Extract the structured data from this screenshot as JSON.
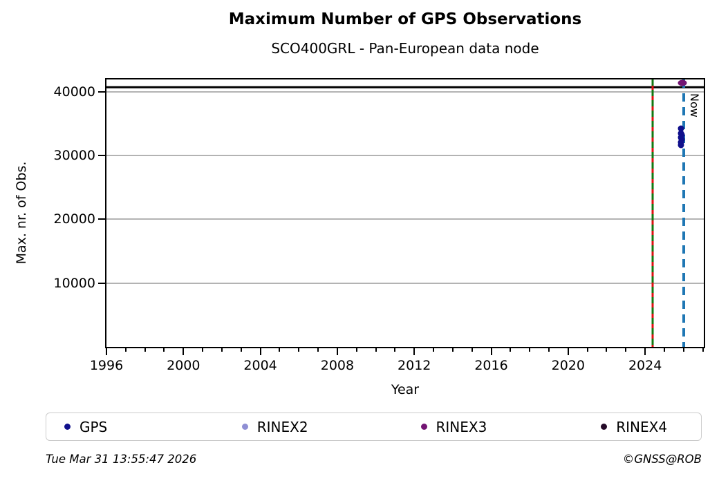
{
  "header": {
    "title": "Maximum Number of GPS Observations",
    "subtitle": "SCO400GRL - Pan-European data node"
  },
  "footer": {
    "timestamp": "Tue Mar 31 13:55:47 2026",
    "credit": "©GNSS@ROB"
  },
  "legend": [
    {
      "label": "GPS",
      "color": "#10108c"
    },
    {
      "label": "RINEX2",
      "color": "#8f8fd4"
    },
    {
      "label": "RINEX3",
      "color": "#731573"
    },
    {
      "label": "RINEX4",
      "color": "#250a28"
    }
  ],
  "chart_data": {
    "type": "scatter",
    "title": "Maximum Number of GPS Observations",
    "subtitle": "SCO400GRL - Pan-European data node",
    "xlabel": "Year",
    "ylabel": "Max. nr. of Obs.",
    "xlim": [
      1996,
      2027.05
    ],
    "ylim": [
      0,
      41900
    ],
    "x_major_ticks": [
      1996,
      2000,
      2004,
      2008,
      2012,
      2016,
      2020,
      2024
    ],
    "x_minor_step": 1,
    "y_ticks": [
      10000,
      20000,
      30000,
      40000
    ],
    "grid": "horizontal-y-major",
    "grid_color": "#b3b3b3",
    "series": [
      {
        "name": "GPS",
        "color": "#10108c",
        "marker": {
          "w": 9,
          "h": 9
        },
        "points": [
          {
            "x": 2025.88,
            "y": 34200
          },
          {
            "x": 2025.86,
            "y": 33500
          },
          {
            "x": 2025.9,
            "y": 33200
          },
          {
            "x": 2025.85,
            "y": 32850
          },
          {
            "x": 2025.89,
            "y": 32500
          },
          {
            "x": 2025.87,
            "y": 32100
          },
          {
            "x": 2025.88,
            "y": 31600
          }
        ]
      },
      {
        "name": "RINEX2",
        "color": "#8f8fd4",
        "marker": {
          "w": 9,
          "h": 9
        },
        "points": []
      },
      {
        "name": "RINEX3",
        "color": "#731573",
        "marker": {
          "w": 13,
          "h": 9
        },
        "points": [
          {
            "x": 2025.93,
            "y": 41350
          }
        ]
      },
      {
        "name": "RINEX4",
        "color": "#250a28",
        "marker": {
          "w": 9,
          "h": 9
        },
        "points": []
      }
    ],
    "hlines": [
      {
        "y": 40700,
        "color": "#000000",
        "style": "solid",
        "width": 2.5
      }
    ],
    "vlines": [
      {
        "x": 2024.4,
        "color": "#127812",
        "dash_color": "#dd1111",
        "style": "solid-with-dash-overlay",
        "width": 3,
        "label": ""
      },
      {
        "x": 2026.0,
        "color": "#1f77b4",
        "style": "dashed",
        "width": 4,
        "label": "Now"
      }
    ]
  }
}
